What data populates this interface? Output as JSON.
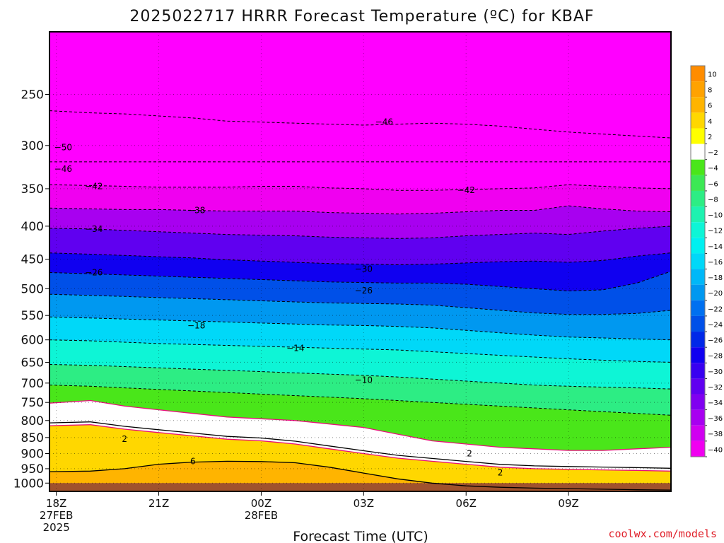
{
  "chart_data": {
    "type": "heatmap",
    "title": "2025022717 HRRR Forecast Temperature (ºC) for KBAF",
    "xlabel": "Forecast Time (UTC)",
    "ylabel": "",
    "credit": "coolwx.com/models",
    "x_range_hours": [
      -0.2,
      18.0
    ],
    "y_range_hpa": [
      200,
      1030
    ],
    "y_scale": "log",
    "grid": true,
    "legend": "right colorbar",
    "yticks": [
      250,
      300,
      350,
      400,
      450,
      500,
      550,
      600,
      650,
      700,
      750,
      800,
      850,
      900,
      950,
      1000
    ],
    "ytick_labels": [
      "250",
      "300",
      "350",
      "400",
      "450",
      "500",
      "550",
      "600",
      "650",
      "700",
      "750",
      "800",
      "850",
      "900",
      "950",
      "1000"
    ],
    "xticks": [
      {
        "hour": 0,
        "lines": [
          "18Z",
          "27FEB",
          "2025"
        ]
      },
      {
        "hour": 3,
        "lines": [
          "21Z"
        ]
      },
      {
        "hour": 6,
        "lines": [
          "00Z",
          "28FEB"
        ]
      },
      {
        "hour": 9,
        "lines": [
          "03Z"
        ]
      },
      {
        "hour": 12,
        "lines": [
          "06Z"
        ]
      },
      {
        "hour": 15,
        "lines": [
          "09Z"
        ]
      }
    ],
    "hours": [
      -0.2,
      1,
      2,
      3,
      4,
      5,
      6,
      7,
      8,
      9,
      10,
      11,
      12,
      13,
      14,
      15,
      16,
      17,
      18
    ],
    "isotherms": [
      {
        "temp": -50,
        "p": [
          318,
          318,
          318,
          318,
          318,
          318,
          318,
          318,
          318,
          318,
          318,
          318,
          318,
          318,
          318,
          318,
          318,
          318,
          318
        ]
      },
      {
        "temp": -46,
        "p": [
          265,
          267,
          268,
          270,
          272,
          275,
          276,
          277,
          278,
          279,
          278,
          277,
          278,
          280,
          283,
          286,
          288,
          290,
          292
        ]
      },
      {
        "temp": -42,
        "p": [
          345,
          346,
          347,
          348,
          348,
          348,
          347,
          347,
          349,
          350,
          352,
          352,
          351,
          350,
          349,
          345,
          347,
          349,
          350
        ]
      },
      {
        "temp": -38,
        "p": [
          375,
          376,
          377,
          377,
          378,
          379,
          379,
          379,
          381,
          382,
          383,
          382,
          380,
          378,
          378,
          372,
          376,
          379,
          380
        ]
      },
      {
        "temp": -34,
        "p": [
          403,
          404,
          406,
          408,
          410,
          412,
          413,
          414,
          416,
          417,
          418,
          417,
          414,
          412,
          410,
          412,
          407,
          403,
          400
        ]
      },
      {
        "temp": -30,
        "p": [
          440,
          442,
          444,
          446,
          448,
          451,
          453,
          455,
          457,
          458,
          459,
          458,
          456,
          454,
          453,
          455,
          452,
          445,
          440
        ]
      },
      {
        "temp": -26,
        "p": [
          472,
          474,
          476,
          478,
          480,
          482,
          484,
          486,
          488,
          489,
          490,
          490,
          492,
          496,
          500,
          504,
          502,
          490,
          470
        ]
      },
      {
        "temp": -22,
        "p": [
          510,
          512,
          514,
          516,
          518,
          520,
          522,
          524,
          526,
          527,
          528,
          530,
          535,
          540,
          545,
          548,
          548,
          546,
          540
        ]
      },
      {
        "temp": -18,
        "p": [
          553,
          555,
          557,
          559,
          561,
          563,
          565,
          567,
          569,
          570,
          572,
          575,
          580,
          585,
          590,
          594,
          596,
          598,
          600
        ]
      },
      {
        "temp": -14,
        "p": [
          600,
          602,
          605,
          608,
          610,
          612,
          614,
          616,
          618,
          620,
          622,
          626,
          630,
          634,
          638,
          642,
          645,
          648,
          650
        ]
      },
      {
        "temp": -10,
        "p": [
          655,
          657,
          660,
          663,
          666,
          669,
          672,
          675,
          678,
          681,
          685,
          690,
          695,
          700,
          705,
          708,
          710,
          712,
          715
        ]
      },
      {
        "temp": -6,
        "p": [
          705,
          708,
          712,
          716,
          720,
          724,
          728,
          732,
          736,
          740,
          745,
          750,
          755,
          760,
          765,
          770,
          775,
          780,
          785
        ]
      },
      {
        "temp": -2,
        "p": [
          752,
          745,
          760,
          770,
          780,
          790,
          795,
          800,
          810,
          820,
          840,
          860,
          870,
          880,
          885,
          890,
          890,
          885,
          880
        ]
      },
      {
        "temp": 2,
        "p": [
          815,
          812,
          825,
          835,
          845,
          855,
          860,
          870,
          885,
          900,
          915,
          925,
          935,
          945,
          950,
          952,
          954,
          956,
          958
        ]
      },
      {
        "temp": 6,
        "p": [
          960,
          958,
          950,
          935,
          928,
          925,
          926,
          930,
          945,
          965,
          985,
          1000,
          1010,
          1015,
          1018,
          1020,
          1022,
          1024,
          1025
        ]
      }
    ],
    "surface_p_hpa": 1000,
    "color_scale": [
      {
        "lo": 10,
        "hi": 12,
        "color": "#ff8c00"
      },
      {
        "lo": 8,
        "hi": 10,
        "color": "#ffa200"
      },
      {
        "lo": 6,
        "hi": 8,
        "color": "#ffb400"
      },
      {
        "lo": 4,
        "hi": 6,
        "color": "#ffd700"
      },
      {
        "lo": 2,
        "hi": 4,
        "color": "#ffff00"
      },
      {
        "lo": -2,
        "hi": 2,
        "color": "#ffffff"
      },
      {
        "lo": -4,
        "hi": -2,
        "color": "#4ae61a"
      },
      {
        "lo": -6,
        "hi": -4,
        "color": "#3ce854"
      },
      {
        "lo": -8,
        "hi": -6,
        "color": "#2ded84"
      },
      {
        "lo": -10,
        "hi": -8,
        "color": "#1ef2b0"
      },
      {
        "lo": -12,
        "hi": -10,
        "color": "#0ef5d6"
      },
      {
        "lo": -14,
        "hi": -12,
        "color": "#00f0f0"
      },
      {
        "lo": -16,
        "hi": -14,
        "color": "#00d8f8"
      },
      {
        "lo": -18,
        "hi": -16,
        "color": "#00b8f8"
      },
      {
        "lo": -20,
        "hi": -18,
        "color": "#0098f0"
      },
      {
        "lo": -22,
        "hi": -20,
        "color": "#0070f0"
      },
      {
        "lo": -24,
        "hi": -22,
        "color": "#0050e8"
      },
      {
        "lo": -26,
        "hi": -24,
        "color": "#0028e8"
      },
      {
        "lo": -28,
        "hi": -26,
        "color": "#1000f0"
      },
      {
        "lo": -30,
        "hi": -28,
        "color": "#3800f0"
      },
      {
        "lo": -32,
        "hi": -30,
        "color": "#6000f0"
      },
      {
        "lo": -34,
        "hi": -32,
        "color": "#8000f0"
      },
      {
        "lo": -36,
        "hi": -34,
        "color": "#a800f0"
      },
      {
        "lo": -38,
        "hi": -36,
        "color": "#d000f0"
      },
      {
        "lo": -40,
        "hi": -38,
        "color": "#f000f0"
      },
      {
        "lo": -60,
        "hi": -40,
        "color": "#ff00ff"
      }
    ],
    "colorbar_labels": [
      "10",
      "8",
      "6",
      "4",
      "2",
      "−2",
      "−4",
      "−6",
      "−8",
      "−10",
      "−12",
      "−14",
      "−16",
      "−18",
      "−20",
      "−22",
      "−24",
      "−26",
      "−28",
      "−30",
      "−32",
      "−34",
      "−36",
      "−38",
      "−40"
    ],
    "contour_labels": [
      {
        "text": "−46",
        "hour": 9.6,
        "p": 276
      },
      {
        "text": "−50",
        "hour": 0.2,
        "p": 302
      },
      {
        "text": "−46",
        "hour": 0.2,
        "p": 326
      },
      {
        "text": "−42",
        "hour": 1.1,
        "p": 347
      },
      {
        "text": "−42",
        "hour": 12.0,
        "p": 352
      },
      {
        "text": "−38",
        "hour": 4.1,
        "p": 378
      },
      {
        "text": "−34",
        "hour": 1.1,
        "p": 404
      },
      {
        "text": "−30",
        "hour": 9.0,
        "p": 466
      },
      {
        "text": "−26",
        "hour": 1.1,
        "p": 472
      },
      {
        "text": "−26",
        "hour": 9.0,
        "p": 503
      },
      {
        "text": "−18",
        "hour": 4.1,
        "p": 570
      },
      {
        "text": "−14",
        "hour": 7.0,
        "p": 618
      },
      {
        "text": "−10",
        "hour": 9.0,
        "p": 692
      },
      {
        "text": "2",
        "hour": 2.0,
        "p": 855
      },
      {
        "text": "2",
        "hour": 12.1,
        "p": 900
      },
      {
        "text": "2",
        "hour": 13.0,
        "p": 964
      },
      {
        "text": "6",
        "hour": 4.0,
        "p": 925
      }
    ]
  }
}
